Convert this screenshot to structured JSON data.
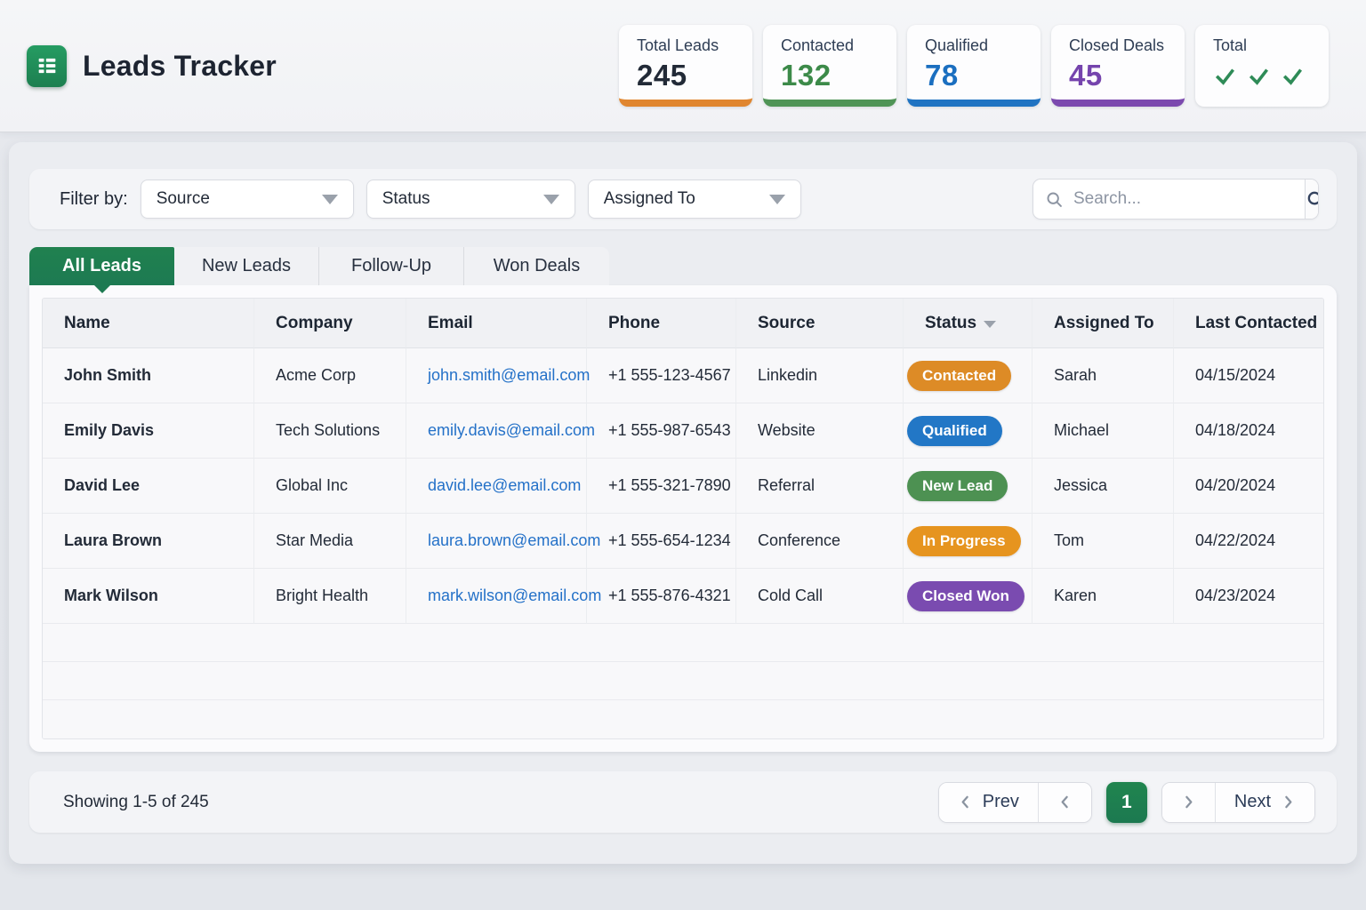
{
  "header": {
    "app_title": "Leads Tracker",
    "stat_cards": [
      {
        "label": "Total Leads",
        "value": "245",
        "accent_color": "#e0862f",
        "value_color": "#222a37"
      },
      {
        "label": "Contacted",
        "value": "132",
        "accent_color": "#4f9456",
        "value_color": "#3c8a49"
      },
      {
        "label": "Qualified",
        "value": "78",
        "accent_color": "#1f73c2",
        "value_color": "#1b6fc0"
      },
      {
        "label": "Closed Deals",
        "value": "45",
        "accent_color": "#7b49ae",
        "value_color": "#7544ad"
      },
      {
        "label": "Total",
        "checks": 3,
        "check_color": "#2e8b57",
        "accent_color": ""
      }
    ]
  },
  "filter_bar": {
    "label": "Filter by:",
    "dropdowns": [
      {
        "value": "Source"
      },
      {
        "value": "Status"
      },
      {
        "value": "Assigned To"
      }
    ],
    "search_placeholder": "Search..."
  },
  "tabs": [
    {
      "label": "All Leads",
      "active": true
    },
    {
      "label": "New Leads",
      "active": false
    },
    {
      "label": "Follow-Up",
      "active": false
    },
    {
      "label": "Won Deals",
      "active": false
    }
  ],
  "table": {
    "columns": [
      {
        "label": "Name"
      },
      {
        "label": "Company"
      },
      {
        "label": "Email"
      },
      {
        "label": "Phone"
      },
      {
        "label": "Source"
      },
      {
        "label": "Status",
        "sort_icon": true
      },
      {
        "label": "Assigned To"
      },
      {
        "label": "Last Contacted"
      }
    ],
    "status_colors": {
      "Contacted": "#dd8b26",
      "Qualified": "#2277c6",
      "New Lead": "#4d9152",
      "In Progress": "#e6941f",
      "Closed Won": "#7a4bb0"
    },
    "rows": [
      {
        "name": "John Smith",
        "company": "Acme Corp",
        "email": "john.smith@email.com",
        "phone": "+1 555-123-4567",
        "source": "Linkedin",
        "status": "Contacted",
        "assigned_to": "Sarah",
        "last_contacted": "04/15/2024"
      },
      {
        "name": "Emily Davis",
        "company": "Tech Solutions",
        "email": "emily.davis@email.com",
        "phone": "+1 555-987-6543",
        "source": "Website",
        "status": "Qualified",
        "assigned_to": "Michael",
        "last_contacted": "04/18/2024"
      },
      {
        "name": "David Lee",
        "company": "Global Inc",
        "email": "david.lee@email.com",
        "phone": "+1 555-321-7890",
        "source": "Referral",
        "status": "New Lead",
        "assigned_to": "Jessica",
        "last_contacted": "04/20/2024"
      },
      {
        "name": "Laura Brown",
        "company": "Star Media",
        "email": "laura.brown@email.com",
        "phone": "+1 555-654-1234",
        "source": "Conference",
        "status": "In Progress",
        "assigned_to": "Tom",
        "last_contacted": "04/22/2024"
      },
      {
        "name": "Mark Wilson",
        "company": "Bright Health",
        "email": "mark.wilson@email.com",
        "phone": "+1 555-876-4321",
        "source": "Cold Call",
        "status": "Closed Won",
        "assigned_to": "Karen",
        "last_contacted": "04/23/2024"
      }
    ]
  },
  "footer": {
    "showing_text": "Showing 1-5 of 245",
    "prev_label": "Prev",
    "current_page": "1",
    "next_label": "Next"
  },
  "colors": {
    "primary_green": "#1e7b52"
  }
}
